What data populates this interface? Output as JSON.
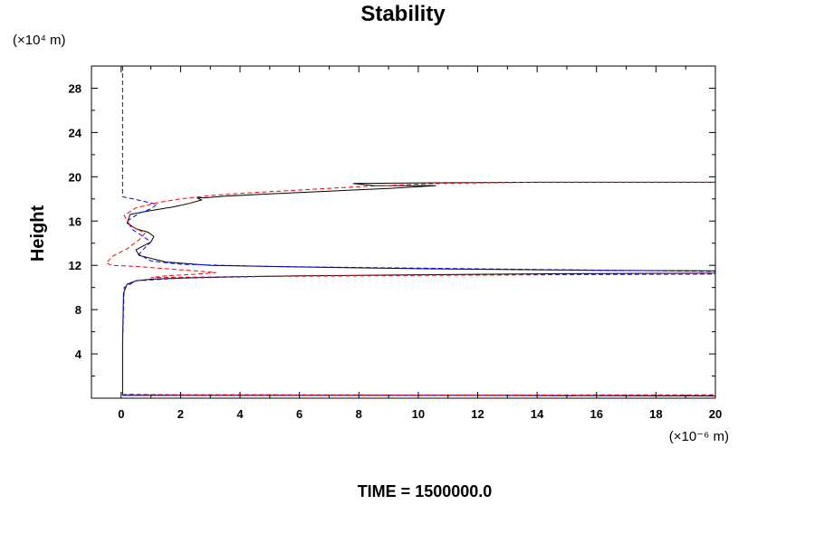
{
  "chart_data": {
    "type": "line",
    "title": "Stability",
    "ylabel": "Height",
    "y_unit": "(×10⁴ m)",
    "x_unit": "(×10⁻⁶ m)",
    "xlim": [
      -1,
      20
    ],
    "ylim": [
      0,
      30
    ],
    "x_ticks": [
      0,
      2,
      4,
      6,
      8,
      10,
      12,
      14,
      16,
      18,
      20
    ],
    "y_ticks": [
      4,
      8,
      12,
      16,
      20,
      24,
      28
    ],
    "grid": false,
    "footer": "TIME = 1500000.0",
    "series": [
      {
        "color": "#000000",
        "style": "solid",
        "points": [
          [
            0.05,
            0.3
          ],
          [
            0.05,
            5.0
          ],
          [
            0.08,
            9.5
          ],
          [
            0.2,
            10.3
          ],
          [
            0.5,
            10.6
          ],
          [
            1.0,
            10.75
          ],
          [
            2.0,
            10.85
          ],
          [
            3.5,
            10.95
          ],
          [
            6.0,
            11.05
          ],
          [
            10.0,
            11.15
          ],
          [
            15.0,
            11.25
          ],
          [
            20.0,
            11.3
          ],
          [
            20.0,
            11.5
          ],
          [
            16.0,
            11.55
          ],
          [
            10.0,
            11.7
          ],
          [
            6.0,
            11.85
          ],
          [
            3.0,
            12.0
          ],
          [
            1.5,
            12.3
          ],
          [
            0.6,
            12.9
          ],
          [
            0.5,
            13.4
          ],
          [
            0.7,
            13.7
          ],
          [
            1.0,
            14.1
          ],
          [
            1.1,
            14.6
          ],
          [
            0.9,
            15.0
          ],
          [
            0.5,
            15.3
          ],
          [
            0.2,
            15.8
          ],
          [
            0.3,
            16.6
          ],
          [
            0.9,
            16.9
          ],
          [
            1.8,
            17.3
          ],
          [
            2.3,
            17.6
          ],
          [
            2.7,
            17.9
          ],
          [
            2.55,
            18.1
          ],
          [
            2.8,
            18.1
          ],
          [
            3.5,
            18.25
          ],
          [
            5.0,
            18.45
          ],
          [
            7.0,
            18.7
          ],
          [
            9.0,
            18.95
          ],
          [
            10.6,
            19.2
          ],
          [
            8.5,
            19.2
          ],
          [
            7.8,
            19.4
          ],
          [
            10.0,
            19.45
          ],
          [
            14.0,
            19.5
          ],
          [
            20.0,
            19.5
          ],
          [
            20.0,
            0.2
          ],
          [
            12.0,
            0.25
          ],
          [
            0.05,
            0.25
          ]
        ]
      },
      {
        "color": "#0000ff",
        "style": "dashed",
        "points": [
          [
            0.05,
            30
          ],
          [
            0.05,
            18.2
          ],
          [
            0.4,
            18.0
          ],
          [
            0.9,
            17.7
          ],
          [
            1.2,
            17.5
          ],
          [
            1.0,
            17.1
          ],
          [
            0.6,
            16.7
          ],
          [
            0.2,
            16.0
          ],
          [
            0.4,
            15.2
          ],
          [
            0.8,
            14.5
          ],
          [
            1.0,
            14.1
          ],
          [
            0.8,
            13.6
          ],
          [
            0.6,
            13.0
          ],
          [
            1.0,
            12.4
          ],
          [
            2.0,
            12.1
          ],
          [
            5.0,
            11.9
          ],
          [
            10.0,
            11.75
          ],
          [
            15.0,
            11.6
          ],
          [
            20.0,
            11.45
          ],
          [
            20.0,
            11.3
          ],
          [
            15.0,
            11.2
          ],
          [
            10.0,
            11.1
          ],
          [
            5.0,
            11.0
          ],
          [
            2.0,
            10.85
          ],
          [
            0.5,
            10.6
          ],
          [
            0.1,
            10.0
          ],
          [
            0.05,
            5.0
          ],
          [
            0.05,
            0.3
          ],
          [
            5.0,
            0.3
          ],
          [
            12.0,
            0.28
          ],
          [
            20.0,
            0.25
          ]
        ]
      },
      {
        "color": "#ff0000",
        "style": "dashed",
        "points": [
          [
            20.0,
            19.5
          ],
          [
            14.0,
            19.5
          ],
          [
            10.6,
            19.4
          ],
          [
            8.0,
            19.1
          ],
          [
            6.0,
            18.8
          ],
          [
            4.0,
            18.5
          ],
          [
            3.0,
            18.3
          ],
          [
            2.0,
            18.0
          ],
          [
            1.3,
            17.7
          ],
          [
            0.5,
            17.2
          ],
          [
            0.1,
            16.5
          ],
          [
            0.3,
            15.6
          ],
          [
            0.8,
            14.9
          ],
          [
            0.6,
            14.3
          ],
          [
            0.2,
            13.5
          ],
          [
            -0.3,
            12.8
          ],
          [
            -0.5,
            12.2
          ],
          [
            -0.3,
            12.0
          ],
          [
            0.5,
            11.9
          ],
          [
            1.5,
            11.7
          ],
          [
            2.5,
            11.5
          ],
          [
            3.2,
            11.35
          ],
          [
            2.5,
            11.2
          ],
          [
            1.5,
            11.05
          ],
          [
            1.0,
            10.9
          ],
          [
            3.0,
            10.95
          ],
          [
            6.0,
            11.05
          ],
          [
            10.0,
            11.1
          ],
          [
            15.0,
            11.15
          ],
          [
            20.0,
            11.2
          ],
          [
            20.0,
            0.3
          ],
          [
            10.0,
            0.28
          ],
          [
            2.0,
            0.3
          ],
          [
            0.1,
            0.35
          ]
        ]
      }
    ]
  }
}
